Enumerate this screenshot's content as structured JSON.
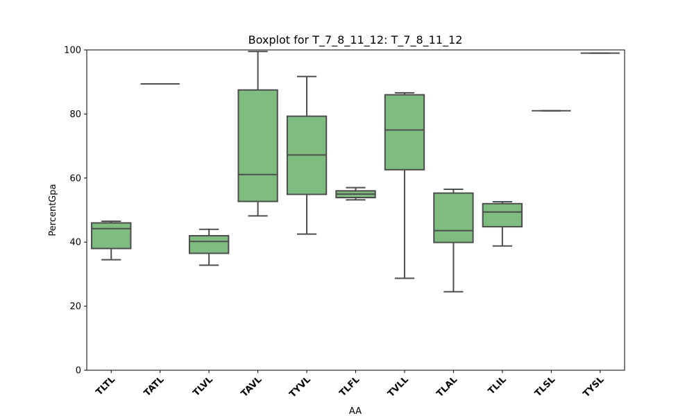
{
  "chart_data": {
    "type": "boxplot",
    "title": "Boxplot for T_7_8_11_12: T_7_8_11_12",
    "xlabel": "AA",
    "ylabel": "PercentGpa",
    "ylim": [
      0,
      100
    ],
    "yticks": [
      0,
      20,
      40,
      60,
      80,
      100
    ],
    "color": "#7fbc7f",
    "edge_color": "#4d4d4d",
    "categories": [
      "TLTL",
      "TATL",
      "TLVL",
      "TAVL",
      "TYVL",
      "TLFL",
      "TVLL",
      "TLAL",
      "TLIL",
      "TLSL",
      "TYSL"
    ],
    "boxes": [
      {
        "min": 34.5,
        "q1": 38.0,
        "median": 44.2,
        "q3": 46.0,
        "max": 46.5
      },
      {
        "min": 89.4,
        "q1": 89.4,
        "median": 89.4,
        "q3": 89.4,
        "max": 89.4
      },
      {
        "min": 32.8,
        "q1": 36.5,
        "median": 40.2,
        "q3": 42.0,
        "max": 44.0
      },
      {
        "min": 48.2,
        "q1": 52.7,
        "median": 61.1,
        "q3": 87.5,
        "max": 99.5
      },
      {
        "min": 42.5,
        "q1": 54.9,
        "median": 67.2,
        "q3": 79.3,
        "max": 91.7
      },
      {
        "min": 53.2,
        "q1": 53.9,
        "median": 55.0,
        "q3": 56.0,
        "max": 57.0
      },
      {
        "min": 28.7,
        "q1": 62.6,
        "median": 75.0,
        "q3": 86.0,
        "max": 86.6
      },
      {
        "min": 24.5,
        "q1": 39.9,
        "median": 43.6,
        "q3": 55.3,
        "max": 56.5
      },
      {
        "min": 38.8,
        "q1": 44.8,
        "median": 49.4,
        "q3": 52.0,
        "max": 52.6
      },
      {
        "min": 81.0,
        "q1": 81.0,
        "median": 81.0,
        "q3": 81.0,
        "max": 81.0
      },
      {
        "min": 99.0,
        "q1": 99.0,
        "median": 99.0,
        "q3": 99.0,
        "max": 99.0
      }
    ]
  }
}
